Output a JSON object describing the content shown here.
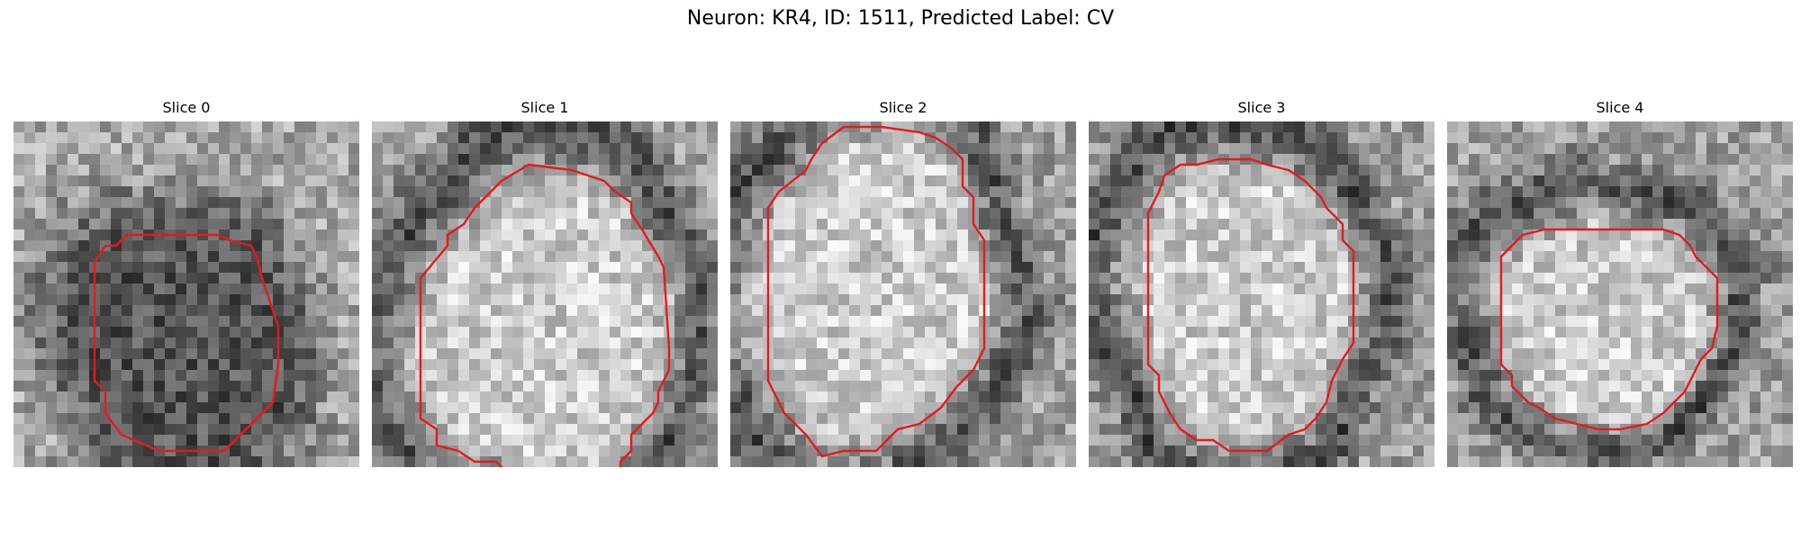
{
  "figure": {
    "title": "Neuron: KR4, ID: 1511, Predicted Label: CV"
  },
  "slices": [
    {
      "title": "Slice 0",
      "ring": "dark",
      "contour": [
        [
          14.0,
          10.5
        ],
        [
          10.5,
          10.5
        ],
        [
          9.5,
          11.5
        ],
        [
          8.5,
          11.5
        ],
        [
          7.5,
          13.0
        ],
        [
          7.5,
          24.0
        ],
        [
          8.5,
          25.0
        ],
        [
          8.5,
          27.0
        ],
        [
          10.0,
          29.0
        ],
        [
          13.5,
          30.5
        ],
        [
          19.5,
          30.5
        ],
        [
          23.0,
          27.0
        ],
        [
          24.0,
          26.0
        ],
        [
          24.5,
          22.5
        ],
        [
          24.5,
          19.0
        ],
        [
          23.0,
          14.5
        ],
        [
          22.5,
          12.5
        ],
        [
          22.0,
          11.5
        ],
        [
          20.0,
          11.0
        ],
        [
          19.0,
          10.5
        ]
      ]
    },
    {
      "title": "Slice 1",
      "ring": "bright",
      "contour": [
        [
          12.0,
          5.5
        ],
        [
          9.5,
          8.0
        ],
        [
          8.5,
          9.5
        ],
        [
          7.0,
          10.5
        ],
        [
          7.0,
          11.5
        ],
        [
          4.5,
          14.5
        ],
        [
          4.5,
          27.5
        ],
        [
          6.0,
          28.5
        ],
        [
          6.0,
          30.0
        ],
        [
          8.0,
          30.5
        ],
        [
          9.5,
          31.5
        ],
        [
          11.5,
          31.5
        ],
        [
          13.5,
          33.5
        ],
        [
          15.5,
          33.5
        ],
        [
          17.5,
          35.5
        ],
        [
          21.5,
          35.5
        ],
        [
          23.0,
          34.0
        ],
        [
          23.0,
          31.5
        ],
        [
          24.0,
          30.5
        ],
        [
          24.0,
          29.0
        ],
        [
          26.0,
          27.0
        ],
        [
          26.5,
          26.0
        ],
        [
          26.5,
          25.0
        ],
        [
          27.0,
          24.0
        ],
        [
          27.5,
          23.0
        ],
        [
          27.5,
          21.0
        ],
        [
          27.0,
          13.5
        ],
        [
          26.5,
          12.5
        ],
        [
          25.0,
          10.0
        ],
        [
          24.0,
          8.5
        ],
        [
          24.0,
          7.5
        ],
        [
          22.5,
          6.5
        ],
        [
          21.5,
          5.5
        ],
        [
          20.0,
          5.0
        ],
        [
          18.5,
          4.5
        ],
        [
          14.5,
          4.0
        ]
      ]
    },
    {
      "title": "Slice 2",
      "ring": "bright",
      "contour": [
        [
          8.5,
          2.0
        ],
        [
          7.5,
          3.5
        ],
        [
          7.0,
          4.5
        ],
        [
          4.5,
          6.5
        ],
        [
          3.5,
          8.0
        ],
        [
          3.5,
          24.0
        ],
        [
          4.5,
          26.0
        ],
        [
          5.0,
          27.0
        ],
        [
          7.0,
          29.0
        ],
        [
          8.5,
          31.0
        ],
        [
          10.5,
          30.5
        ],
        [
          13.5,
          30.5
        ],
        [
          15.5,
          28.5
        ],
        [
          17.5,
          28.0
        ],
        [
          19.5,
          26.5
        ],
        [
          21.0,
          24.5
        ],
        [
          22.5,
          23.0
        ],
        [
          23.5,
          21.0
        ],
        [
          23.5,
          11.0
        ],
        [
          22.5,
          9.5
        ],
        [
          22.5,
          7.0
        ],
        [
          21.5,
          6.0
        ],
        [
          21.5,
          3.5
        ],
        [
          20.5,
          2.5
        ],
        [
          19.0,
          1.5
        ],
        [
          17.5,
          1.0
        ],
        [
          14.0,
          0.5
        ],
        [
          10.5,
          0.5
        ]
      ]
    },
    {
      "title": "Slice 3",
      "ring": "bright",
      "contour": [
        [
          10.0,
          4.0
        ],
        [
          8.5,
          4.0
        ],
        [
          7.0,
          5.0
        ],
        [
          6.5,
          6.5
        ],
        [
          5.5,
          8.5
        ],
        [
          5.5,
          22.5
        ],
        [
          6.5,
          23.5
        ],
        [
          6.5,
          25.0
        ],
        [
          7.5,
          27.0
        ],
        [
          8.5,
          28.5
        ],
        [
          10.0,
          29.5
        ],
        [
          11.5,
          29.5
        ],
        [
          13.0,
          30.5
        ],
        [
          16.5,
          30.5
        ],
        [
          18.5,
          29.0
        ],
        [
          20.0,
          28.5
        ],
        [
          21.0,
          27.5
        ],
        [
          22.0,
          26.0
        ],
        [
          22.5,
          24.0
        ],
        [
          23.5,
          22.0
        ],
        [
          24.5,
          20.5
        ],
        [
          24.5,
          12.0
        ],
        [
          23.5,
          11.0
        ],
        [
          23.5,
          9.5
        ],
        [
          22.0,
          8.0
        ],
        [
          21.5,
          7.0
        ],
        [
          20.0,
          5.5
        ],
        [
          18.5,
          4.5
        ],
        [
          16.5,
          4.0
        ],
        [
          15.0,
          3.5
        ],
        [
          12.0,
          3.5
        ]
      ]
    },
    {
      "title": "Slice 4",
      "ring": "bright",
      "contour": [
        [
          7.0,
          10.5
        ],
        [
          6.0,
          11.5
        ],
        [
          5.0,
          12.5
        ],
        [
          5.0,
          22.5
        ],
        [
          6.0,
          23.5
        ],
        [
          6.0,
          24.5
        ],
        [
          7.5,
          26.0
        ],
        [
          8.5,
          26.5
        ],
        [
          10.0,
          27.5
        ],
        [
          12.0,
          28.0
        ],
        [
          14.0,
          28.5
        ],
        [
          16.0,
          28.5
        ],
        [
          18.5,
          28.0
        ],
        [
          20.0,
          27.0
        ],
        [
          21.0,
          26.0
        ],
        [
          22.0,
          25.0
        ],
        [
          22.5,
          24.0
        ],
        [
          23.5,
          22.0
        ],
        [
          24.5,
          21.0
        ],
        [
          25.0,
          19.0
        ],
        [
          25.0,
          14.5
        ],
        [
          24.0,
          13.5
        ],
        [
          23.0,
          12.5
        ],
        [
          22.5,
          11.5
        ],
        [
          21.5,
          10.5
        ],
        [
          20.0,
          10.0
        ],
        [
          9.0,
          10.0
        ]
      ]
    }
  ]
}
